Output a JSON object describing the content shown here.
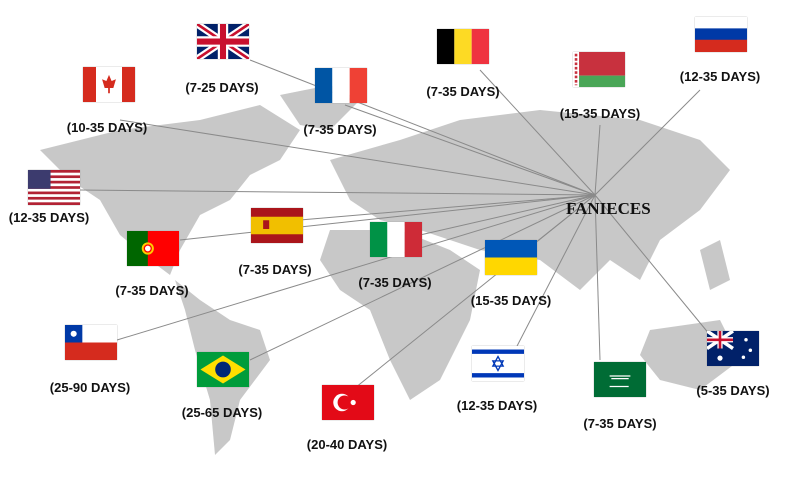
{
  "hub_label": "FANIECES",
  "line_color": "#8a8a8a",
  "map_color": "#c8c8c8",
  "destinations": [
    {
      "flag_icon": "uk-flag",
      "days": "(7-25 DAYS)"
    },
    {
      "flag_icon": "canada-flag",
      "days": "(10-35 DAYS)"
    },
    {
      "flag_icon": "france-flag",
      "days": "(7-35 DAYS)"
    },
    {
      "flag_icon": "belgium-flag",
      "days": "(7-35 DAYS)"
    },
    {
      "flag_icon": "belarus-flag",
      "days": "(15-35 DAYS)"
    },
    {
      "flag_icon": "russia-flag",
      "days": "(12-35 DAYS)"
    },
    {
      "flag_icon": "usa-flag",
      "days": "(12-35 DAYS)"
    },
    {
      "flag_icon": "spain-flag",
      "days": "(7-35 DAYS)"
    },
    {
      "flag_icon": "portugal-flag",
      "days": "(7-35 DAYS)"
    },
    {
      "flag_icon": "italy-flag",
      "days": "(7-35 DAYS)"
    },
    {
      "flag_icon": "ukraine-flag",
      "days": "(15-35 DAYS)"
    },
    {
      "flag_icon": "chile-flag",
      "days": "(25-90 DAYS)"
    },
    {
      "flag_icon": "brazil-flag",
      "days": "(25-65 DAYS)"
    },
    {
      "flag_icon": "turkey-flag",
      "days": "(20-40 DAYS)"
    },
    {
      "flag_icon": "israel-flag",
      "days": "(12-35 DAYS)"
    },
    {
      "flag_icon": "saudi-arabia-flag",
      "days": "(7-35 DAYS)"
    },
    {
      "flag_icon": "australia-flag",
      "days": "(5-35 DAYS)"
    }
  ]
}
